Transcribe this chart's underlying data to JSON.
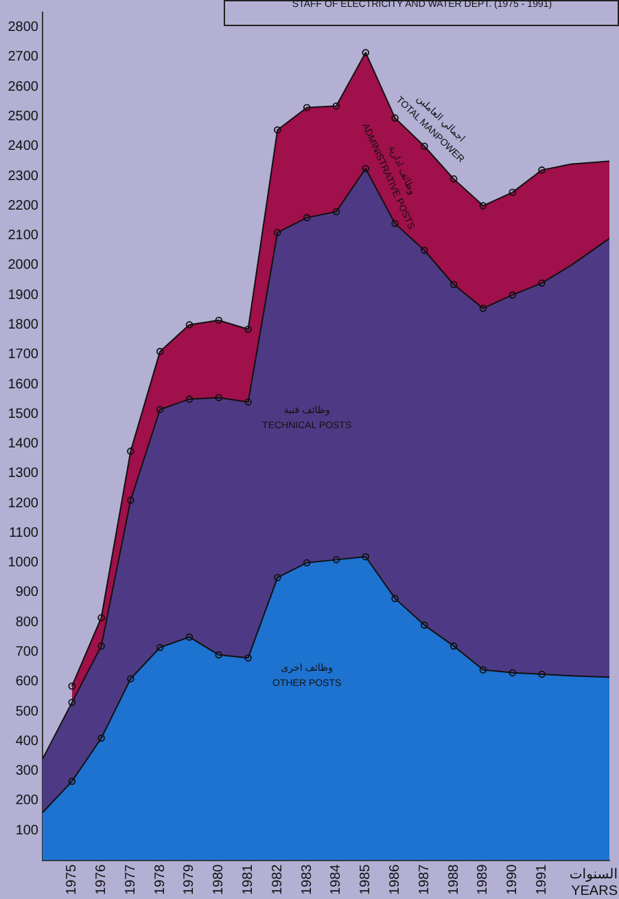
{
  "chart_data": {
    "type": "area",
    "stacked": true,
    "title": "STAFF OF ELECTRICITY AND WATER DEPT. (1975 - 1991)",
    "xlabel": "السنوات\nYEARS",
    "x": [
      1974,
      1975,
      1976,
      1977,
      1978,
      1979,
      1980,
      1981,
      1982,
      1983,
      1984,
      1985,
      1986,
      1987,
      1988,
      1989,
      1990,
      1991,
      1992,
      1993.3
    ],
    "series": [
      {
        "name": "وظائف اخرى\nOTHER POSTS",
        "color": "#1e72d0",
        "values": [
          160,
          265,
          410,
          610,
          715,
          750,
          690,
          680,
          950,
          1000,
          1010,
          1020,
          880,
          790,
          720,
          640,
          630,
          625,
          620,
          615
        ]
      },
      {
        "name": "وظائف فنية\nTECHNICAL POSTS",
        "color": "#4e3a84",
        "values": [
          180,
          265,
          310,
          600,
          800,
          800,
          865,
          860,
          1160,
          1160,
          1170,
          1305,
          1260,
          1260,
          1215,
          1215,
          1270,
          1315,
          1380,
          1475
        ]
      },
      {
        "name": "وظائف ادارية\nADMINISTRATIVE POSTS",
        "color": "#a0104a",
        "values": [
          null,
          55,
          95,
          165,
          195,
          250,
          260,
          245,
          345,
          370,
          355,
          390,
          355,
          350,
          355,
          345,
          345,
          380,
          340,
          260
        ]
      }
    ],
    "annotations": [
      "اجمالي العاملين\nTOTAL MANPOWER"
    ],
    "marker": "circle",
    "xlim": [
      1974,
      1993.3
    ],
    "xticks": [
      1975,
      1976,
      1977,
      1978,
      1979,
      1980,
      1981,
      1982,
      1983,
      1984,
      1985,
      1986,
      1987,
      1988,
      1989,
      1990,
      1991
    ],
    "ylim": [
      0,
      2850
    ],
    "yticks": [
      100,
      200,
      300,
      400,
      500,
      600,
      700,
      800,
      900,
      1000,
      1100,
      1200,
      1300,
      1400,
      1500,
      1600,
      1700,
      1800,
      1900,
      2000,
      2100,
      2200,
      2300,
      2400,
      2500,
      2600,
      2700,
      2800
    ]
  }
}
